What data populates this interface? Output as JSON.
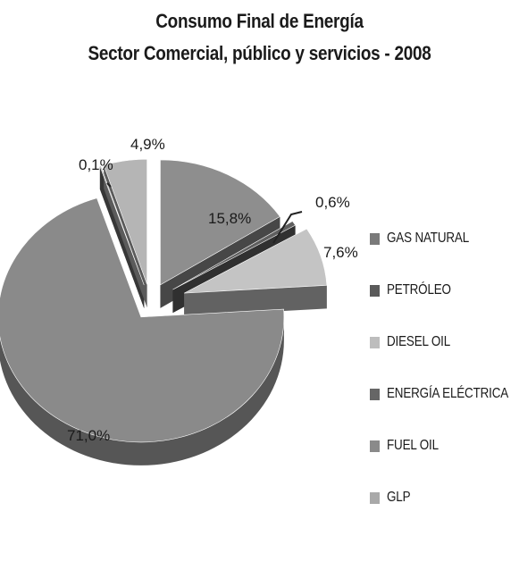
{
  "title_line_1": "Consumo Final de Energía",
  "title_line_2": "Sector Comercial, público y servicios - 2008",
  "chart_data": {
    "type": "pie",
    "title": "Consumo Final de Energía Sector Comercial, público y servicios - 2008",
    "legend_position": "right",
    "style": "3d-exploded",
    "slices": [
      {
        "label": "GAS NATURAL",
        "value": 15.8,
        "display": "15,8%",
        "color": "#8e8e8e"
      },
      {
        "label": "PETRÓLEO",
        "value": 0.6,
        "display": "0,6%",
        "color": "#5f5f5f"
      },
      {
        "label": "DIESEL OIL",
        "value": 7.6,
        "display": "7,6%",
        "color": "#c4c4c4"
      },
      {
        "label": "ENERGÍA ELÉCTRICA",
        "value": 71.0,
        "display": "71,0%",
        "color": "#8a8a8a"
      },
      {
        "label": "FUEL OIL",
        "value": 0.1,
        "display": "0,1%",
        "color": "#6e6e6e"
      },
      {
        "label": "GLP",
        "value": 4.9,
        "display": "4,9%",
        "color": "#b5b5b5"
      }
    ]
  },
  "legend": [
    {
      "label": "GAS NATURAL",
      "color": "#7a7a7a"
    },
    {
      "label": "PETRÓLEO",
      "color": "#5a5a5a"
    },
    {
      "label": "DIESEL OIL",
      "color": "#bdbdbd"
    },
    {
      "label": "ENERGÍA ELÉCTRICA",
      "color": "#666666"
    },
    {
      "label": "FUEL OIL",
      "color": "#8a8a8a"
    },
    {
      "label": "GLP",
      "color": "#a9a9a9"
    }
  ]
}
